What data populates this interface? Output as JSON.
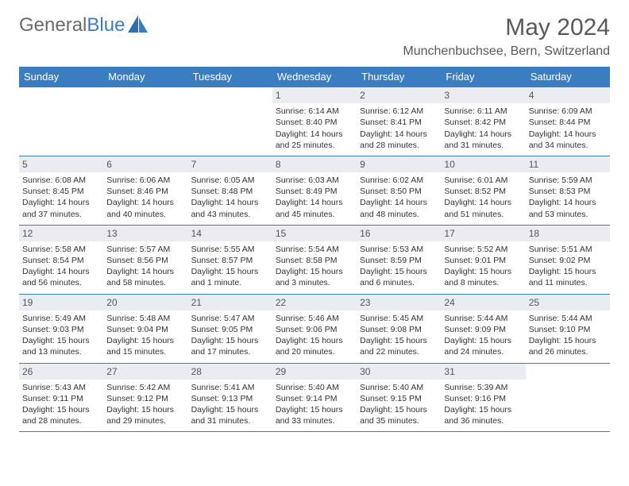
{
  "brand": {
    "part1": "General",
    "part2": "Blue"
  },
  "title": "May 2024",
  "location": "Munchenbuchsee, Bern, Switzerland",
  "colors": {
    "header_bg": "#3a7ec1",
    "header_text": "#ffffff",
    "daybar_bg": "#e9edf2",
    "border": "#3a7ec1",
    "title_color": "#595959",
    "body_text": "#333333"
  },
  "day_headers": [
    "Sunday",
    "Monday",
    "Tuesday",
    "Wednesday",
    "Thursday",
    "Friday",
    "Saturday"
  ],
  "weeks": [
    [
      {
        "day": "",
        "lines": []
      },
      {
        "day": "",
        "lines": []
      },
      {
        "day": "",
        "lines": []
      },
      {
        "day": "1",
        "lines": [
          "Sunrise: 6:14 AM",
          "Sunset: 8:40 PM",
          "Daylight: 14 hours and 25 minutes."
        ]
      },
      {
        "day": "2",
        "lines": [
          "Sunrise: 6:12 AM",
          "Sunset: 8:41 PM",
          "Daylight: 14 hours and 28 minutes."
        ]
      },
      {
        "day": "3",
        "lines": [
          "Sunrise: 6:11 AM",
          "Sunset: 8:42 PM",
          "Daylight: 14 hours and 31 minutes."
        ]
      },
      {
        "day": "4",
        "lines": [
          "Sunrise: 6:09 AM",
          "Sunset: 8:44 PM",
          "Daylight: 14 hours and 34 minutes."
        ]
      }
    ],
    [
      {
        "day": "5",
        "lines": [
          "Sunrise: 6:08 AM",
          "Sunset: 8:45 PM",
          "Daylight: 14 hours and 37 minutes."
        ]
      },
      {
        "day": "6",
        "lines": [
          "Sunrise: 6:06 AM",
          "Sunset: 8:46 PM",
          "Daylight: 14 hours and 40 minutes."
        ]
      },
      {
        "day": "7",
        "lines": [
          "Sunrise: 6:05 AM",
          "Sunset: 8:48 PM",
          "Daylight: 14 hours and 43 minutes."
        ]
      },
      {
        "day": "8",
        "lines": [
          "Sunrise: 6:03 AM",
          "Sunset: 8:49 PM",
          "Daylight: 14 hours and 45 minutes."
        ]
      },
      {
        "day": "9",
        "lines": [
          "Sunrise: 6:02 AM",
          "Sunset: 8:50 PM",
          "Daylight: 14 hours and 48 minutes."
        ]
      },
      {
        "day": "10",
        "lines": [
          "Sunrise: 6:01 AM",
          "Sunset: 8:52 PM",
          "Daylight: 14 hours and 51 minutes."
        ]
      },
      {
        "day": "11",
        "lines": [
          "Sunrise: 5:59 AM",
          "Sunset: 8:53 PM",
          "Daylight: 14 hours and 53 minutes."
        ]
      }
    ],
    [
      {
        "day": "12",
        "lines": [
          "Sunrise: 5:58 AM",
          "Sunset: 8:54 PM",
          "Daylight: 14 hours and 56 minutes."
        ]
      },
      {
        "day": "13",
        "lines": [
          "Sunrise: 5:57 AM",
          "Sunset: 8:56 PM",
          "Daylight: 14 hours and 58 minutes."
        ]
      },
      {
        "day": "14",
        "lines": [
          "Sunrise: 5:55 AM",
          "Sunset: 8:57 PM",
          "Daylight: 15 hours and 1 minute."
        ]
      },
      {
        "day": "15",
        "lines": [
          "Sunrise: 5:54 AM",
          "Sunset: 8:58 PM",
          "Daylight: 15 hours and 3 minutes."
        ]
      },
      {
        "day": "16",
        "lines": [
          "Sunrise: 5:53 AM",
          "Sunset: 8:59 PM",
          "Daylight: 15 hours and 6 minutes."
        ]
      },
      {
        "day": "17",
        "lines": [
          "Sunrise: 5:52 AM",
          "Sunset: 9:01 PM",
          "Daylight: 15 hours and 8 minutes."
        ]
      },
      {
        "day": "18",
        "lines": [
          "Sunrise: 5:51 AM",
          "Sunset: 9:02 PM",
          "Daylight: 15 hours and 11 minutes."
        ]
      }
    ],
    [
      {
        "day": "19",
        "lines": [
          "Sunrise: 5:49 AM",
          "Sunset: 9:03 PM",
          "Daylight: 15 hours and 13 minutes."
        ]
      },
      {
        "day": "20",
        "lines": [
          "Sunrise: 5:48 AM",
          "Sunset: 9:04 PM",
          "Daylight: 15 hours and 15 minutes."
        ]
      },
      {
        "day": "21",
        "lines": [
          "Sunrise: 5:47 AM",
          "Sunset: 9:05 PM",
          "Daylight: 15 hours and 17 minutes."
        ]
      },
      {
        "day": "22",
        "lines": [
          "Sunrise: 5:46 AM",
          "Sunset: 9:06 PM",
          "Daylight: 15 hours and 20 minutes."
        ]
      },
      {
        "day": "23",
        "lines": [
          "Sunrise: 5:45 AM",
          "Sunset: 9:08 PM",
          "Daylight: 15 hours and 22 minutes."
        ]
      },
      {
        "day": "24",
        "lines": [
          "Sunrise: 5:44 AM",
          "Sunset: 9:09 PM",
          "Daylight: 15 hours and 24 minutes."
        ]
      },
      {
        "day": "25",
        "lines": [
          "Sunrise: 5:44 AM",
          "Sunset: 9:10 PM",
          "Daylight: 15 hours and 26 minutes."
        ]
      }
    ],
    [
      {
        "day": "26",
        "lines": [
          "Sunrise: 5:43 AM",
          "Sunset: 9:11 PM",
          "Daylight: 15 hours and 28 minutes."
        ]
      },
      {
        "day": "27",
        "lines": [
          "Sunrise: 5:42 AM",
          "Sunset: 9:12 PM",
          "Daylight: 15 hours and 29 minutes."
        ]
      },
      {
        "day": "28",
        "lines": [
          "Sunrise: 5:41 AM",
          "Sunset: 9:13 PM",
          "Daylight: 15 hours and 31 minutes."
        ]
      },
      {
        "day": "29",
        "lines": [
          "Sunrise: 5:40 AM",
          "Sunset: 9:14 PM",
          "Daylight: 15 hours and 33 minutes."
        ]
      },
      {
        "day": "30",
        "lines": [
          "Sunrise: 5:40 AM",
          "Sunset: 9:15 PM",
          "Daylight: 15 hours and 35 minutes."
        ]
      },
      {
        "day": "31",
        "lines": [
          "Sunrise: 5:39 AM",
          "Sunset: 9:16 PM",
          "Daylight: 15 hours and 36 minutes."
        ]
      },
      {
        "day": "",
        "lines": []
      }
    ]
  ]
}
